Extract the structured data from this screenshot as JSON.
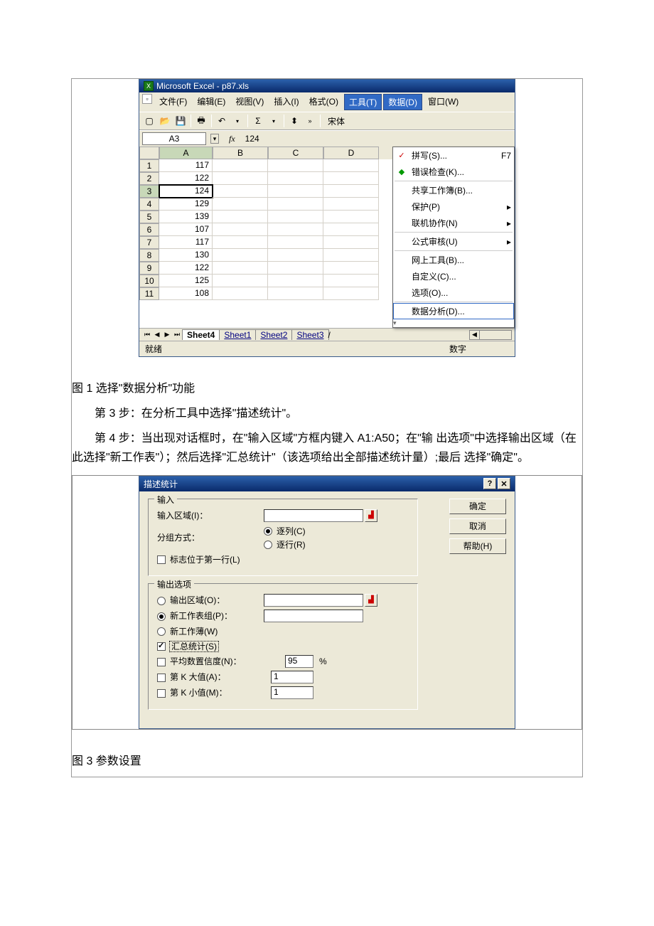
{
  "excel": {
    "title": "Microsoft Excel - p87.xls",
    "menus": {
      "file": "文件(F)",
      "edit": "编辑(E)",
      "view": "视图(V)",
      "insert": "插入(I)",
      "format": "格式(O)",
      "tools": "工具(T)",
      "data": "数据(D)",
      "window": "窗口(W)"
    },
    "font_label": "宋体",
    "name_box": "A3",
    "formula_value": "124",
    "columns": [
      "A",
      "B",
      "C",
      "D"
    ],
    "rows": [
      {
        "n": "1",
        "a": "117"
      },
      {
        "n": "2",
        "a": "122"
      },
      {
        "n": "3",
        "a": "124"
      },
      {
        "n": "4",
        "a": "129"
      },
      {
        "n": "5",
        "a": "139"
      },
      {
        "n": "6",
        "a": "107"
      },
      {
        "n": "7",
        "a": "117"
      },
      {
        "n": "8",
        "a": "130"
      },
      {
        "n": "9",
        "a": "122"
      },
      {
        "n": "10",
        "a": "125"
      },
      {
        "n": "11",
        "a": "108"
      }
    ],
    "selected_row": "3",
    "tabs": [
      "Sheet4",
      "Sheet1",
      "Sheet2",
      "Sheet3"
    ],
    "active_tab": "Sheet4",
    "status_left": "就绪",
    "status_right": "数字",
    "tools_menu": {
      "spelling": "拼写(S)...",
      "spelling_shortcut": "F7",
      "error_check": "错误检查(K)...",
      "share_workbook": "共享工作簿(B)...",
      "protect": "保护(P)",
      "collaborate": "联机协作(N)",
      "formula_audit": "公式审核(U)",
      "web_tools": "网上工具(B)...",
      "customize": "自定义(C)...",
      "options": "选项(O)...",
      "data_analysis": "数据分析(D)..."
    }
  },
  "caption1": "图 1  选择\"数据分析\"功能",
  "step3": "第 3 步：在分析工具中选择\"描述统计\"。",
  "step4": "第 4 步：当出现对话框时，在\"输入区域\"方框内键入 A1:A50；在\"输 出选项\"中选择输出区域（在此选择\"新工作表\"）；然后选择\"汇总统计\"（该选项给出全部描述统计量）;最后 选择\"确定\"。",
  "dialog": {
    "title": "描述统计",
    "group_input": "输入",
    "input_range": "输入区域(I)：",
    "group_by": "分组方式：",
    "by_col": "逐列(C)",
    "by_row": "逐行(R)",
    "first_row_label": "标志位于第一行(L)",
    "group_output": "输出选项",
    "output_range": "输出区域(O)：",
    "new_sheet": "新工作表组(P)：",
    "new_workbook": "新工作薄(W)",
    "summary": "汇总统计(S)",
    "confidence": "平均数置信度(N)：",
    "confidence_val": "95",
    "confidence_pct": "%",
    "kth_large": "第 K 大值(A)：",
    "kth_large_val": "1",
    "kth_small": "第 K 小值(M)：",
    "kth_small_val": "1",
    "btn_ok": "确定",
    "btn_cancel": "取消",
    "btn_help": "帮助(H)"
  },
  "caption3": "图 3 参数设置"
}
